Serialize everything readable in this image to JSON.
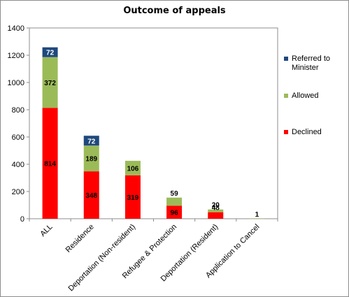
{
  "chart_data": {
    "type": "bar",
    "stacked": true,
    "title": "Outcome of appeals",
    "categories": [
      "ALL",
      "Residence",
      "Deportation (Non-resident)",
      "Refugee & Protection",
      "Deportation (Resident)",
      "Application to Cancel"
    ],
    "series": [
      {
        "name": "Declined",
        "color": "#ff0000",
        "values": [
          814,
          348,
          319,
          96,
          48,
          0
        ]
      },
      {
        "name": "Allowed",
        "color": "#9bbb59",
        "values": [
          372,
          189,
          106,
          59,
          20,
          1
        ]
      },
      {
        "name": "Referred to Minister",
        "color": "#1f497d",
        "values": [
          72,
          72,
          0,
          0,
          0,
          0
        ]
      }
    ],
    "data_labels": [
      [
        {
          "series": "Declined",
          "text": "814"
        },
        {
          "series": "Allowed",
          "text": "372"
        },
        {
          "series": "Referred to Minister",
          "text": "72"
        }
      ],
      [
        {
          "series": "Declined",
          "text": "348"
        },
        {
          "series": "Allowed",
          "text": "189"
        },
        {
          "series": "Referred to Minister",
          "text": "72"
        }
      ],
      [
        {
          "series": "Declined",
          "text": "319"
        },
        {
          "series": "Allowed",
          "text": "106"
        }
      ],
      [
        {
          "series": "Declined",
          "text": "96"
        },
        {
          "series": "Allowed",
          "text": "59"
        }
      ],
      [
        {
          "series": "Declined",
          "text": "48"
        },
        {
          "series": "Allowed",
          "text": "20"
        }
      ],
      [
        {
          "series": "Allowed",
          "text": "1"
        }
      ]
    ],
    "yticks": [
      "0",
      "200",
      "400",
      "600",
      "800",
      "1000",
      "1200",
      "1400"
    ],
    "ylim": [
      0,
      1400
    ],
    "grid": false,
    "legend_position": "right",
    "legend_order": [
      "Referred to Minister",
      "Allowed",
      "Declined"
    ]
  }
}
